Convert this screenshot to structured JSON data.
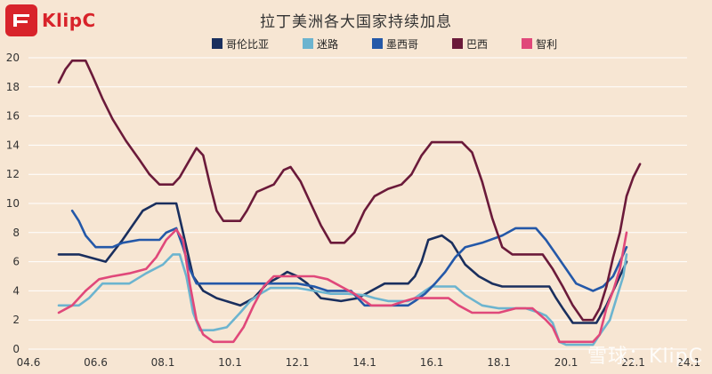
{
  "brand": {
    "name": "KlipC"
  },
  "watermark": {
    "text": "雪球：KlipC"
  },
  "chart_data": {
    "type": "line",
    "title": "拉丁美洲各大国家持续加息",
    "xlabel": "",
    "ylabel": "",
    "xlim": [
      2004.5,
      2024.1
    ],
    "ylim": [
      0,
      20
    ],
    "x_ticks": [
      {
        "label": "04.6",
        "x": 2004.5
      },
      {
        "label": "06.6",
        "x": 2006.5
      },
      {
        "label": "08.1",
        "x": 2008.5
      },
      {
        "label": "10.1",
        "x": 2010.5
      },
      {
        "label": "12.1",
        "x": 2012.5
      },
      {
        "label": "14.1",
        "x": 2014.5
      },
      {
        "label": "16.1",
        "x": 2016.5
      },
      {
        "label": "18.1",
        "x": 2018.5
      },
      {
        "label": "20.1",
        "x": 2020.5
      },
      {
        "label": "22.1",
        "x": 2022.5
      },
      {
        "label": "24.1",
        "x": 2024.5
      }
    ],
    "y_ticks": [
      0,
      2,
      4,
      6,
      8,
      10,
      12,
      14,
      16,
      18,
      20
    ],
    "grid": true,
    "legend": "top",
    "series": [
      {
        "name": "哥伦比亚",
        "color": "#1a2f5e",
        "points": [
          [
            2005.4,
            6.5
          ],
          [
            2006.0,
            6.5
          ],
          [
            2006.8,
            6.0
          ],
          [
            2007.3,
            7.5
          ],
          [
            2007.9,
            9.5
          ],
          [
            2008.3,
            10.0
          ],
          [
            2008.9,
            10.0
          ],
          [
            2009.0,
            9.0
          ],
          [
            2009.2,
            7.0
          ],
          [
            2009.4,
            5.0
          ],
          [
            2009.7,
            4.0
          ],
          [
            2010.1,
            3.5
          ],
          [
            2010.8,
            3.0
          ],
          [
            2011.2,
            3.5
          ],
          [
            2011.6,
            4.5
          ],
          [
            2012.0,
            5.0
          ],
          [
            2012.2,
            5.3
          ],
          [
            2012.5,
            5.0
          ],
          [
            2012.8,
            4.5
          ],
          [
            2013.2,
            3.5
          ],
          [
            2013.8,
            3.3
          ],
          [
            2014.3,
            3.5
          ],
          [
            2014.7,
            4.0
          ],
          [
            2015.1,
            4.5
          ],
          [
            2015.8,
            4.5
          ],
          [
            2016.0,
            5.0
          ],
          [
            2016.2,
            6.0
          ],
          [
            2016.4,
            7.5
          ],
          [
            2016.8,
            7.8
          ],
          [
            2017.1,
            7.3
          ],
          [
            2017.5,
            5.8
          ],
          [
            2017.9,
            5.0
          ],
          [
            2018.3,
            4.5
          ],
          [
            2018.6,
            4.3
          ],
          [
            2019.5,
            4.3
          ],
          [
            2020.0,
            4.3
          ],
          [
            2020.2,
            3.5
          ],
          [
            2020.4,
            2.8
          ],
          [
            2020.7,
            1.8
          ],
          [
            2021.4,
            1.8
          ],
          [
            2021.7,
            3.0
          ],
          [
            2021.9,
            4.0
          ],
          [
            2022.1,
            5.0
          ],
          [
            2022.3,
            6.0
          ]
        ]
      },
      {
        "name": "迷路",
        "color": "#6cb4cf",
        "points": [
          [
            2005.4,
            3.0
          ],
          [
            2006.0,
            3.0
          ],
          [
            2006.3,
            3.5
          ],
          [
            2006.7,
            4.5
          ],
          [
            2007.5,
            4.5
          ],
          [
            2008.0,
            5.2
          ],
          [
            2008.5,
            5.8
          ],
          [
            2008.8,
            6.5
          ],
          [
            2009.0,
            6.5
          ],
          [
            2009.2,
            5.0
          ],
          [
            2009.4,
            2.5
          ],
          [
            2009.6,
            1.3
          ],
          [
            2010.0,
            1.3
          ],
          [
            2010.4,
            1.5
          ],
          [
            2010.8,
            2.5
          ],
          [
            2011.1,
            3.3
          ],
          [
            2011.4,
            3.8
          ],
          [
            2011.7,
            4.2
          ],
          [
            2012.5,
            4.2
          ],
          [
            2013.0,
            4.0
          ],
          [
            2013.5,
            3.8
          ],
          [
            2014.0,
            3.8
          ],
          [
            2014.5,
            3.7
          ],
          [
            2014.8,
            3.5
          ],
          [
            2015.2,
            3.3
          ],
          [
            2015.8,
            3.3
          ],
          [
            2016.0,
            3.5
          ],
          [
            2016.3,
            4.0
          ],
          [
            2016.5,
            4.3
          ],
          [
            2017.2,
            4.3
          ],
          [
            2017.5,
            3.7
          ],
          [
            2018.0,
            3.0
          ],
          [
            2018.5,
            2.8
          ],
          [
            2019.3,
            2.8
          ],
          [
            2019.7,
            2.5
          ],
          [
            2019.9,
            2.3
          ],
          [
            2020.1,
            1.8
          ],
          [
            2020.3,
            0.5
          ],
          [
            2020.5,
            0.3
          ],
          [
            2021.3,
            0.3
          ],
          [
            2021.5,
            1.0
          ],
          [
            2021.8,
            2.0
          ],
          [
            2022.0,
            3.5
          ],
          [
            2022.2,
            5.0
          ],
          [
            2022.3,
            6.5
          ]
        ]
      },
      {
        "name": "墨西哥",
        "color": "#2458a8",
        "points": [
          [
            2005.8,
            9.5
          ],
          [
            2006.0,
            8.8
          ],
          [
            2006.2,
            7.8
          ],
          [
            2006.5,
            7.0
          ],
          [
            2007.0,
            7.0
          ],
          [
            2007.3,
            7.3
          ],
          [
            2007.8,
            7.5
          ],
          [
            2008.4,
            7.5
          ],
          [
            2008.6,
            8.0
          ],
          [
            2008.9,
            8.3
          ],
          [
            2009.1,
            7.0
          ],
          [
            2009.3,
            5.5
          ],
          [
            2009.5,
            4.5
          ],
          [
            2010.5,
            4.5
          ],
          [
            2011.5,
            4.5
          ],
          [
            2012.5,
            4.5
          ],
          [
            2013.0,
            4.3
          ],
          [
            2013.4,
            4.0
          ],
          [
            2014.1,
            4.0
          ],
          [
            2014.3,
            3.5
          ],
          [
            2014.5,
            3.0
          ],
          [
            2015.8,
            3.0
          ],
          [
            2016.0,
            3.3
          ],
          [
            2016.3,
            3.8
          ],
          [
            2016.6,
            4.5
          ],
          [
            2016.9,
            5.3
          ],
          [
            2017.2,
            6.3
          ],
          [
            2017.5,
            7.0
          ],
          [
            2018.0,
            7.3
          ],
          [
            2018.6,
            7.8
          ],
          [
            2019.0,
            8.3
          ],
          [
            2019.6,
            8.3
          ],
          [
            2019.9,
            7.5
          ],
          [
            2020.2,
            6.5
          ],
          [
            2020.5,
            5.5
          ],
          [
            2020.8,
            4.5
          ],
          [
            2021.3,
            4.0
          ],
          [
            2021.6,
            4.3
          ],
          [
            2021.9,
            5.0
          ],
          [
            2022.1,
            6.0
          ],
          [
            2022.3,
            7.0
          ]
        ]
      },
      {
        "name": "巴西",
        "color": "#6b1a3a",
        "points": [
          [
            2005.4,
            18.3
          ],
          [
            2005.6,
            19.2
          ],
          [
            2005.8,
            19.8
          ],
          [
            2006.2,
            19.8
          ],
          [
            2006.4,
            18.8
          ],
          [
            2006.7,
            17.2
          ],
          [
            2007.0,
            15.8
          ],
          [
            2007.4,
            14.3
          ],
          [
            2007.8,
            13.0
          ],
          [
            2008.1,
            12.0
          ],
          [
            2008.4,
            11.3
          ],
          [
            2008.8,
            11.3
          ],
          [
            2009.0,
            11.8
          ],
          [
            2009.3,
            13.0
          ],
          [
            2009.5,
            13.8
          ],
          [
            2009.7,
            13.3
          ],
          [
            2009.9,
            11.3
          ],
          [
            2010.1,
            9.5
          ],
          [
            2010.3,
            8.8
          ],
          [
            2010.8,
            8.8
          ],
          [
            2011.0,
            9.5
          ],
          [
            2011.3,
            10.8
          ],
          [
            2011.8,
            11.3
          ],
          [
            2012.1,
            12.3
          ],
          [
            2012.3,
            12.5
          ],
          [
            2012.6,
            11.5
          ],
          [
            2012.9,
            10.0
          ],
          [
            2013.2,
            8.5
          ],
          [
            2013.5,
            7.3
          ],
          [
            2013.9,
            7.3
          ],
          [
            2014.2,
            8.0
          ],
          [
            2014.5,
            9.5
          ],
          [
            2014.8,
            10.5
          ],
          [
            2015.2,
            11.0
          ],
          [
            2015.6,
            11.3
          ],
          [
            2015.9,
            12.0
          ],
          [
            2016.2,
            13.3
          ],
          [
            2016.5,
            14.2
          ],
          [
            2017.0,
            14.2
          ],
          [
            2017.4,
            14.2
          ],
          [
            2017.7,
            13.5
          ],
          [
            2018.0,
            11.5
          ],
          [
            2018.3,
            9.0
          ],
          [
            2018.6,
            7.0
          ],
          [
            2018.9,
            6.5
          ],
          [
            2019.8,
            6.5
          ],
          [
            2020.1,
            5.5
          ],
          [
            2020.4,
            4.3
          ],
          [
            2020.7,
            3.0
          ],
          [
            2021.0,
            2.0
          ],
          [
            2021.3,
            2.0
          ],
          [
            2021.5,
            2.8
          ],
          [
            2021.7,
            4.3
          ],
          [
            2021.9,
            6.3
          ],
          [
            2022.1,
            8.0
          ],
          [
            2022.3,
            10.5
          ],
          [
            2022.5,
            11.8
          ],
          [
            2022.7,
            12.7
          ]
        ]
      },
      {
        "name": "智利",
        "color": "#e0487a",
        "points": [
          [
            2005.4,
            2.5
          ],
          [
            2005.8,
            3.0
          ],
          [
            2006.2,
            4.0
          ],
          [
            2006.6,
            4.8
          ],
          [
            2007.0,
            5.0
          ],
          [
            2007.5,
            5.2
          ],
          [
            2008.0,
            5.5
          ],
          [
            2008.3,
            6.3
          ],
          [
            2008.6,
            7.5
          ],
          [
            2008.9,
            8.2
          ],
          [
            2009.1,
            7.5
          ],
          [
            2009.3,
            4.5
          ],
          [
            2009.5,
            2.0
          ],
          [
            2009.7,
            1.0
          ],
          [
            2010.0,
            0.5
          ],
          [
            2010.6,
            0.5
          ],
          [
            2010.9,
            1.5
          ],
          [
            2011.2,
            3.0
          ],
          [
            2011.5,
            4.3
          ],
          [
            2011.8,
            5.0
          ],
          [
            2012.5,
            5.0
          ],
          [
            2013.0,
            5.0
          ],
          [
            2013.4,
            4.8
          ],
          [
            2013.8,
            4.3
          ],
          [
            2014.2,
            3.8
          ],
          [
            2014.7,
            3.0
          ],
          [
            2015.3,
            3.0
          ],
          [
            2015.7,
            3.3
          ],
          [
            2016.0,
            3.5
          ],
          [
            2017.0,
            3.5
          ],
          [
            2017.3,
            3.0
          ],
          [
            2017.7,
            2.5
          ],
          [
            2018.5,
            2.5
          ],
          [
            2019.0,
            2.8
          ],
          [
            2019.5,
            2.8
          ],
          [
            2019.9,
            2.0
          ],
          [
            2020.1,
            1.5
          ],
          [
            2020.3,
            0.5
          ],
          [
            2021.3,
            0.5
          ],
          [
            2021.5,
            1.0
          ],
          [
            2021.7,
            2.8
          ],
          [
            2021.9,
            4.0
          ],
          [
            2022.1,
            5.5
          ],
          [
            2022.3,
            8.0
          ]
        ]
      }
    ]
  }
}
